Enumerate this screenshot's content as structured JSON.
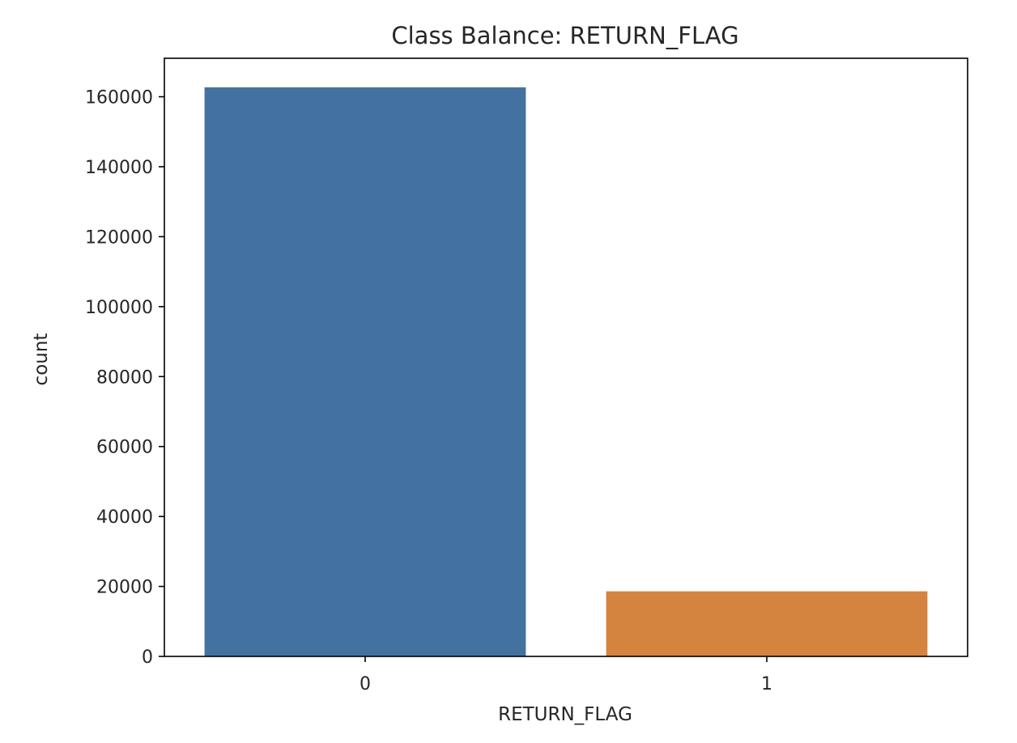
{
  "chart_data": {
    "type": "bar",
    "title": "Class Balance: RETURN_FLAG",
    "xlabel": "RETURN_FLAG",
    "ylabel": "count",
    "categories": [
      "0",
      "1"
    ],
    "values": [
      162700,
      18600
    ],
    "ylim": [
      0,
      171000
    ],
    "yticks": [
      0,
      20000,
      40000,
      60000,
      80000,
      100000,
      120000,
      140000,
      160000
    ],
    "colors": [
      "#4472a0",
      "#d4843e"
    ],
    "grid": false,
    "legend": "none"
  }
}
